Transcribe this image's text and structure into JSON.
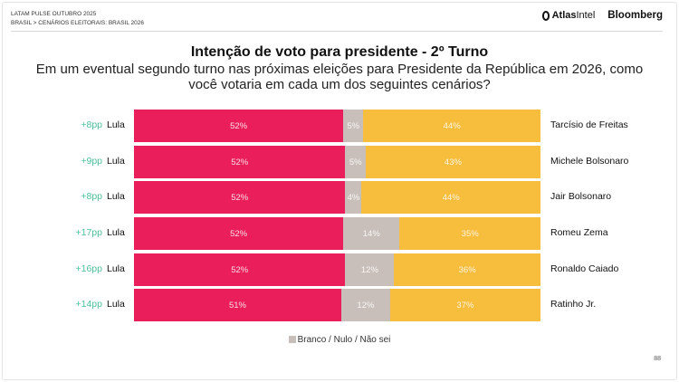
{
  "header": {
    "line1": "LATAM PULSE OUTUBRO 2025",
    "line2": "BRASIL > CENÁRIOS ELEITORAIS: BRASIL 2026",
    "logo_atlas_bold": "Atlas",
    "logo_atlas_light": "Intel",
    "logo_bloomberg": "Bloomberg"
  },
  "page_number": "88",
  "colors": {
    "lula": "#e91e5a",
    "blank": "#c9bfba",
    "opponent": "#f7bd3d",
    "margin": "#4cbf98"
  },
  "chart_data": {
    "type": "bar",
    "stacked": true,
    "orientation": "horizontal",
    "title": "Intenção de voto para presidente - 2º Turno",
    "subtitle": "Em um eventual segundo turno nas próximas eleições para Presidente da República em 2026, como você votaria em cada um dos seguintes cenários?",
    "legend": [
      {
        "label": "Branco / Nulo / Não sei",
        "color": "#c9bfba"
      }
    ],
    "legend_position": "bottom",
    "rows": [
      {
        "margin": "+8pp",
        "left": "Lula",
        "right": "Tarcísio de Freitas",
        "lula": 52,
        "blank": 5,
        "opponent": 44
      },
      {
        "margin": "+9pp",
        "left": "Lula",
        "right": "Michele Bolsonaro",
        "lula": 52,
        "blank": 5,
        "opponent": 43
      },
      {
        "margin": "+8pp",
        "left": "Lula",
        "right": "Jair Bolsonaro",
        "lula": 52,
        "blank": 4,
        "opponent": 44
      },
      {
        "margin": "+17pp",
        "left": "Lula",
        "right": "Romeu Zema",
        "lula": 52,
        "blank": 14,
        "opponent": 35
      },
      {
        "margin": "+16pp",
        "left": "Lula",
        "right": "Ronaldo Caiado",
        "lula": 52,
        "blank": 12,
        "opponent": 36
      },
      {
        "margin": "+14pp",
        "left": "Lula",
        "right": "Ratinho Jr.",
        "lula": 51,
        "blank": 12,
        "opponent": 37
      }
    ]
  }
}
